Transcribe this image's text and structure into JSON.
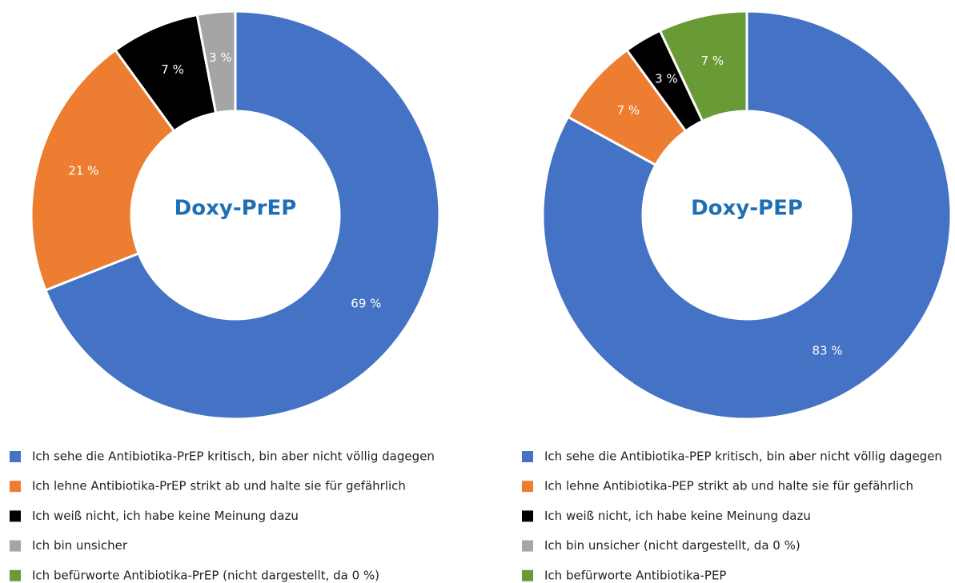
{
  "chart_data": [
    {
      "type": "donut",
      "title": "Doxy-PrEP",
      "categories": [
        "Ich sehe die Antibiotika-PrEP kritisch, bin aber nicht völlig dagegen",
        "Ich lehne Antibiotika-PrEP strikt ab und halte sie für gefährlich",
        "Ich weiß nicht, ich habe keine Meinung dazu",
        "Ich bin unsicher",
        "Ich befürworte Antibiotika-PrEP (nicht dargestellt, da 0 %)"
      ],
      "values": [
        69,
        21,
        7,
        3,
        0
      ],
      "value_labels": [
        "69 %",
        "21 %",
        "7 %",
        "3 %",
        null
      ],
      "colors": [
        "#4472c4",
        "#ed7d31",
        "#000000",
        "#a5a5a5",
        "#6a9a35"
      ]
    },
    {
      "type": "donut",
      "title": "Doxy-PEP",
      "categories": [
        "Ich sehe die Antibiotika-PEP kritisch, bin aber nicht völlig dagegen",
        "Ich lehne Antibiotika-PEP strikt ab und halte sie für gefährlich",
        "Ich weiß nicht, ich habe keine Meinung dazu",
        "Ich bin unsicher (nicht dargestellt, da 0 %)",
        "Ich befürworte Antibiotika-PEP"
      ],
      "values": [
        83,
        7,
        3,
        0,
        7
      ],
      "value_labels": [
        "83 %",
        "7 %",
        "3 %",
        null,
        "7 %"
      ],
      "colors": [
        "#4472c4",
        "#ed7d31",
        "#000000",
        "#a5a5a5",
        "#6a9a35"
      ]
    }
  ]
}
